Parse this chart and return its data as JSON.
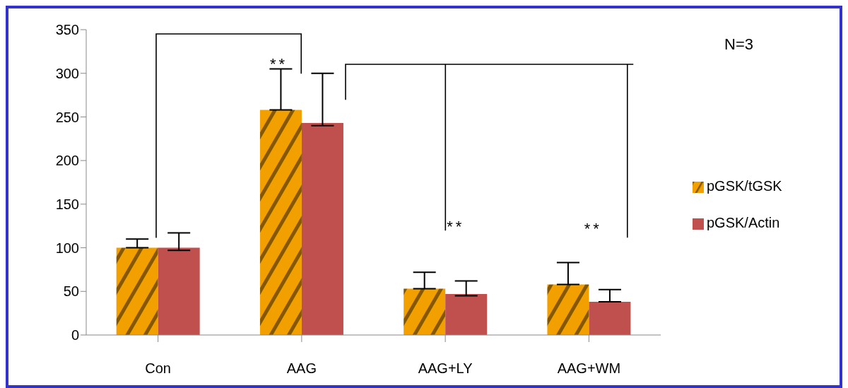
{
  "chart_data": {
    "type": "bar",
    "categories": [
      "Con",
      "AAG",
      "AAG+LY",
      "AAG+WM"
    ],
    "series": [
      {
        "name": "pGSK/tGSK",
        "color": "#f2a000",
        "values": [
          100,
          258,
          53,
          58
        ],
        "errors": [
          [
            100,
            110
          ],
          [
            258,
            305
          ],
          [
            53,
            72
          ],
          [
            58,
            83
          ]
        ]
      },
      {
        "name": "pGSK/Actin",
        "color": "#c0504d",
        "values": [
          100,
          243,
          47,
          38
        ],
        "errors": [
          [
            97,
            117
          ],
          [
            240,
            300
          ],
          [
            45,
            62
          ],
          [
            38,
            52
          ]
        ]
      }
    ],
    "ylim": [
      0,
      350
    ],
    "yticks": [
      0,
      50,
      100,
      150,
      200,
      250,
      300,
      350
    ],
    "grid": false,
    "legend": "right",
    "annotations": [
      "N=3",
      "**",
      "**",
      "**"
    ]
  }
}
